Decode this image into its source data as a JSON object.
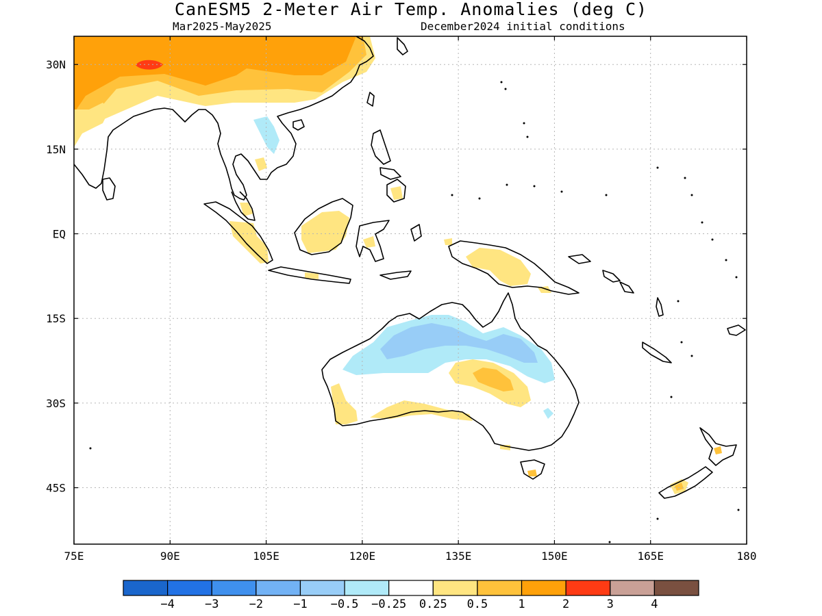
{
  "header": {
    "title": "CanESM5 2-Meter Air Temp. Anomalies (deg C)",
    "period": "Mar2025-May2025",
    "initial_conditions": "December2024 initial conditions"
  },
  "map": {
    "lon_range": [
      75,
      180
    ],
    "lat_range": [
      -55,
      35
    ],
    "lon_ticks": [
      {
        "value": 75,
        "label": "75E"
      },
      {
        "value": 90,
        "label": "90E"
      },
      {
        "value": 105,
        "label": "105E"
      },
      {
        "value": 120,
        "label": "120E"
      },
      {
        "value": 135,
        "label": "135E"
      },
      {
        "value": 150,
        "label": "150E"
      },
      {
        "value": 165,
        "label": "165E"
      },
      {
        "value": 180,
        "label": "180"
      }
    ],
    "lat_ticks": [
      {
        "value": 30,
        "label": "30N"
      },
      {
        "value": 15,
        "label": "15N"
      },
      {
        "value": 0,
        "label": "EQ"
      },
      {
        "value": -15,
        "label": "15S"
      },
      {
        "value": -30,
        "label": "30S"
      },
      {
        "value": -45,
        "label": "45S"
      }
    ]
  },
  "colorbar": {
    "colors": [
      "#1a66cc",
      "#2272e5",
      "#3f90ee",
      "#72b2f5",
      "#98cdf7",
      "#b0eaf8",
      "#ffffff",
      "#ffe581",
      "#ffc23b",
      "#ffa10a",
      "#ff3b14",
      "#c9a096",
      "#7a5040"
    ],
    "labels": [
      "-4",
      "-3",
      "-2",
      "-1",
      "-0.5",
      "-0.25",
      "0.25",
      "0.5",
      "1",
      "2",
      "3",
      "4"
    ]
  }
}
